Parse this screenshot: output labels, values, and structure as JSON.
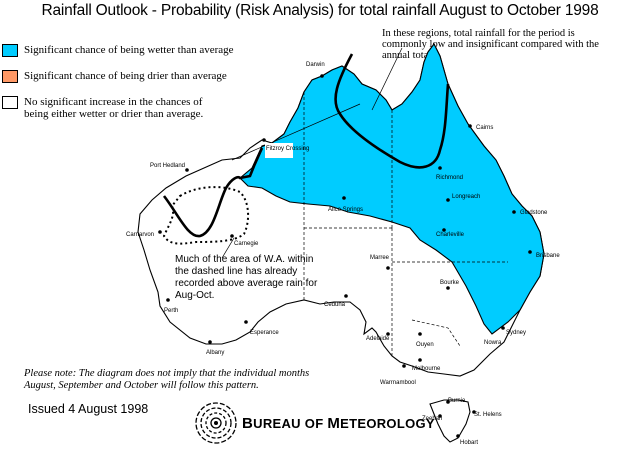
{
  "title": "Rainfall Outlook - Probability (Risk Analysis) for total rainfall August to October 1998",
  "colors": {
    "wetter": "#00ccff",
    "drier": "#ff9966",
    "none": "#ffffff"
  },
  "legend": [
    {
      "color": "#00ccff",
      "text": "Significant chance of being wetter than average"
    },
    {
      "color": "#ff9966",
      "text": "Significant chance of being drier than average"
    },
    {
      "color": "#ffffff",
      "text": "No significant increase in the chances of\nbeing either wetter or drier than average."
    }
  ],
  "note_top": "In these regions, total rainfall for the period is commonly low and insignificant compared with the annual total.",
  "wa_note": "Much of the area of W.A. within the dashed line has already recorded above average rain for Aug-Oct.",
  "please_note": "Please note: The diagram does not imply that the individual months August, September and October will follow this pattern.",
  "issued": "Issued 4 August 1998",
  "bureau": {
    "b": "B",
    "ureau": "UREAU OF ",
    "m": "M",
    "eteorology": "ETEOROLOGY"
  },
  "places": [
    {
      "name": "Darwin"
    },
    {
      "name": "Cairns"
    },
    {
      "name": "Fitzroy Crossing"
    },
    {
      "name": "Port Hedland"
    },
    {
      "name": "Richmond"
    },
    {
      "name": "Longreach"
    },
    {
      "name": "Gladstone"
    },
    {
      "name": "Alice Springs"
    },
    {
      "name": "Charleville"
    },
    {
      "name": "Carnarvon"
    },
    {
      "name": "Carnegie"
    },
    {
      "name": "Brisbane"
    },
    {
      "name": "Marree"
    },
    {
      "name": "Bourke"
    },
    {
      "name": "Ceduna"
    },
    {
      "name": "Perth"
    },
    {
      "name": "Esperance"
    },
    {
      "name": "Sydney"
    },
    {
      "name": "Adelaide"
    },
    {
      "name": "Ouyen"
    },
    {
      "name": "Nowra"
    },
    {
      "name": "Albany"
    },
    {
      "name": "Melbourne"
    },
    {
      "name": "Warrnambool"
    },
    {
      "name": "Burnie"
    },
    {
      "name": "St. Helens"
    },
    {
      "name": "Zeehan"
    },
    {
      "name": "Hobart"
    }
  ]
}
